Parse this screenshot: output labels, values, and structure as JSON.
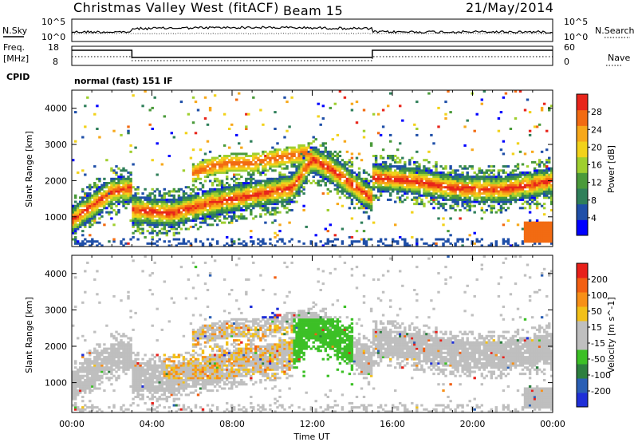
{
  "header": {
    "radar": "Christmas Valley West (fitACF)",
    "beam": "Beam 15",
    "date": "21/May/2014"
  },
  "aux_labels": {
    "nsky": "N.Sky",
    "nsearch": "N.Search",
    "freq": "Freq.",
    "freq_unit": "[MHz]",
    "nave": "Nave",
    "cpid": "CPID",
    "cpid_text": "normal (fast) 151 IF"
  },
  "aux_ticks": {
    "noise_left": [
      "10^5",
      "10^0"
    ],
    "noise_right": [
      "10^5",
      "10^0"
    ],
    "freq_left": [
      "18",
      "8"
    ],
    "nave_right": [
      "60",
      "0"
    ]
  },
  "colors": {
    "power": [
      "#0000ff",
      "#1f4fa8",
      "#2f7f5a",
      "#4a9a3a",
      "#9fcf2f",
      "#f2d21a",
      "#f7a81a",
      "#f26b12",
      "#e8251b"
    ],
    "velocity": [
      "#1f2fd8",
      "#2a5fb5",
      "#2d7f3f",
      "#3cc026",
      "#bfbfbf",
      "#bfbfbf",
      "#f2c019",
      "#f79018",
      "#f25f12",
      "#e8201a"
    ]
  },
  "chart_data": [
    {
      "type": "heatmap",
      "title": "",
      "xlabel": "",
      "ylabel": "Slant Range [km]",
      "xlim": [
        "00:00",
        "24:00"
      ],
      "ylim": [
        180,
        4500
      ],
      "yticks": [
        "1000",
        "2000",
        "3000",
        "4000"
      ],
      "colorbar": {
        "label": "Power [dB]",
        "range": [
          0,
          32
        ],
        "ticks": [
          "4",
          "8",
          "12",
          "16",
          "20",
          "24",
          "28"
        ]
      },
      "bands": [
        {
          "name": "lower",
          "t": [
            0,
            1,
            2,
            3,
            3.01,
            5,
            7,
            9,
            10,
            11,
            12,
            13,
            14,
            15,
            15.01,
            17,
            19,
            21,
            22,
            23,
            24
          ],
          "range_km": [
            900,
            1300,
            1700,
            1800,
            1200,
            1100,
            1400,
            1600,
            1700,
            1800,
            2600,
            2300,
            1900,
            1500,
            2100,
            2000,
            1800,
            1750,
            1800,
            1900,
            2000
          ]
        },
        {
          "name": "upper",
          "t": [
            6,
            7,
            8,
            9,
            10,
            11,
            12
          ],
          "range_km": [
            2200,
            2400,
            2500,
            2500,
            2600,
            2700,
            2800
          ]
        }
      ]
    },
    {
      "type": "heatmap",
      "title": "",
      "xlabel": "Time UT",
      "ylabel": "Slant Range [km]",
      "xlim": [
        "00:00",
        "24:00"
      ],
      "ylim": [
        180,
        4500
      ],
      "xticks": [
        "00:00",
        "04:00",
        "08:00",
        "12:00",
        "16:00",
        "20:00",
        "00:00"
      ],
      "yticks": [
        "1000",
        "2000",
        "3000",
        "4000"
      ],
      "colorbar": {
        "label": "Velocity [m s^-1]",
        "range": [
          -250,
          250
        ],
        "ticks": [
          "200",
          "100",
          "50",
          "15",
          "-15",
          "-50",
          "-100",
          "-200"
        ]
      }
    }
  ]
}
